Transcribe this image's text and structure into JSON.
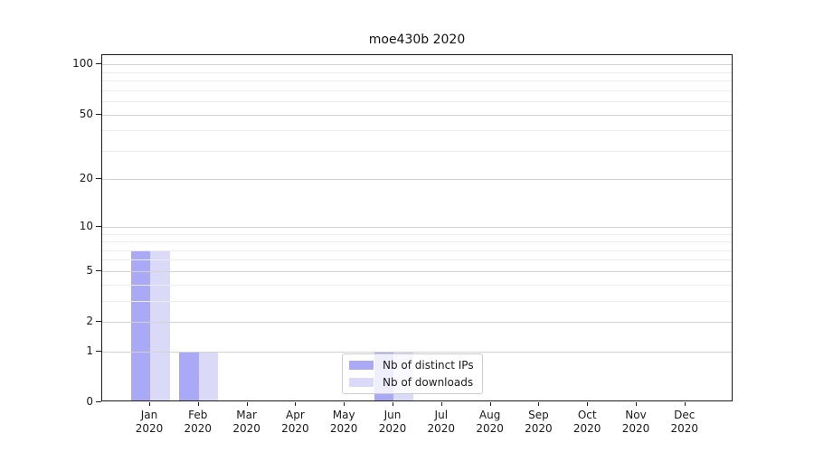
{
  "chart_data": {
    "type": "bar",
    "title": "moe430b 2020",
    "x_months": [
      "Jan",
      "Feb",
      "Mar",
      "Apr",
      "May",
      "Jun",
      "Jul",
      "Aug",
      "Sep",
      "Oct",
      "Nov",
      "Dec"
    ],
    "x_year": "2020",
    "series": [
      {
        "name": "Nb of distinct IPs",
        "color": "#a9a9f6",
        "values": [
          7,
          1,
          0,
          0,
          0,
          1,
          0,
          0,
          0,
          0,
          0,
          0
        ]
      },
      {
        "name": "Nb of downloads",
        "color": "#dadaf8",
        "values": [
          7,
          1,
          0,
          0,
          0,
          1,
          0,
          0,
          0,
          0,
          0,
          0
        ]
      }
    ],
    "y_axis": {
      "scale": "log1p",
      "major_ticks": [
        0,
        1,
        2,
        5,
        10,
        20,
        50,
        100
      ],
      "minor_ticks": [
        3,
        4,
        6,
        7,
        8,
        9,
        30,
        40,
        60,
        70,
        80,
        90
      ],
      "ymax": 114
    },
    "grid": true,
    "legend": {
      "position": "bottom-center"
    },
    "colors": {
      "spine": "#1a1a1a",
      "major_grid": "#d2d2d2",
      "minor_grid": "#ececec",
      "background": "#ffffff"
    }
  }
}
